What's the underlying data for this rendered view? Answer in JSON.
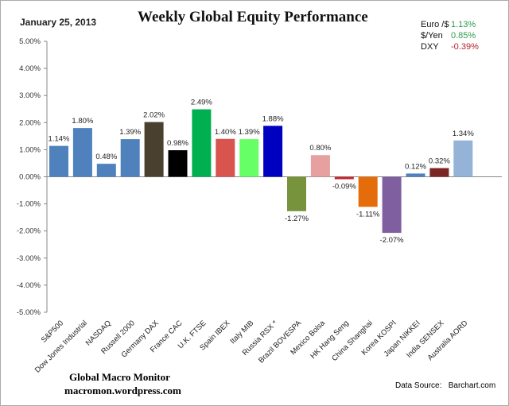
{
  "header": {
    "date": "January 25, 2013",
    "title": "Weekly Global Equity Performance"
  },
  "fx": [
    {
      "label": "Euro /$",
      "value": "1.13%",
      "color": "#2e9b4c"
    },
    {
      "label": "$/Yen",
      "value": "0.85%",
      "color": "#2e9b4c"
    },
    {
      "label": "DXY",
      "value": "-0.39%",
      "color": "#b2242c"
    }
  ],
  "footer": {
    "credit_line1": "Global Macro Monitor",
    "credit_line2": "macromon.wordpress.com",
    "source_label": "Data Source:",
    "source_value": "Barchart.com"
  },
  "chart_data": {
    "type": "bar",
    "title": "Weekly Global Equity Performance",
    "ylim": [
      -5,
      5
    ],
    "yticks": [
      "5.00%",
      "4.00%",
      "3.00%",
      "2.00%",
      "1.00%",
      "0.00%",
      "-1.00%",
      "-2.00%",
      "-3.00%",
      "-4.00%",
      "-5.00%"
    ],
    "grid": false,
    "categories": [
      "S&P500",
      "Dow Jones Industrial",
      "NASDAQ",
      "Russell 2000",
      "Germany DAX",
      "France CAC",
      "U.K. FTSE",
      "Spain IBEX",
      "Italy  MIB",
      "Russia RSX *",
      "Brazil BOVESPA",
      "Mexico Bolsa",
      "HK  Hang Seng",
      "China Shanghai",
      "Korea KOSPI",
      "Japan NIKKEI",
      "India SENSEX",
      "Australia AORD"
    ],
    "values": [
      1.14,
      1.8,
      0.48,
      1.39,
      2.02,
      0.98,
      2.49,
      1.4,
      1.39,
      1.88,
      -1.27,
      0.8,
      -0.09,
      -1.11,
      -2.07,
      0.12,
      0.32,
      1.34
    ],
    "labels": [
      "1.14%",
      "1.80%",
      "0.48%",
      "1.39%",
      "2.02%",
      "0.98%",
      "2.49%",
      "1.40%",
      "1.39%",
      "1.88%",
      "-1.27%",
      "0.80%",
      "-0.09%",
      "-1.11%",
      "-2.07%",
      "0.12%",
      "0.32%",
      "1.34%"
    ],
    "colors": [
      "#4f81bd",
      "#4f81bd",
      "#4f81bd",
      "#4f81bd",
      "#4a4030",
      "#000000",
      "#00b050",
      "#d9534f",
      "#66ff66",
      "#0000c0",
      "#77933c",
      "#e6a0a0",
      "#c0282d",
      "#e46c0a",
      "#7f5f9f",
      "#4f81bd",
      "#7b2424",
      "#95b3d7"
    ]
  }
}
